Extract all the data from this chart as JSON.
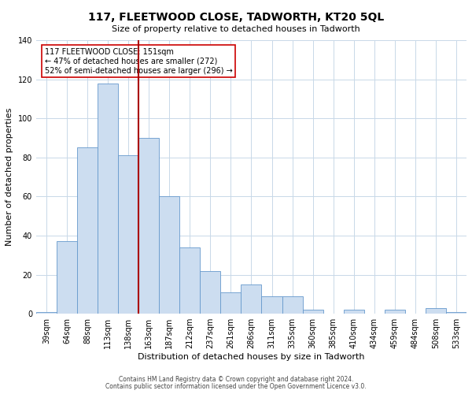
{
  "title": "117, FLEETWOOD CLOSE, TADWORTH, KT20 5QL",
  "subtitle": "Size of property relative to detached houses in Tadworth",
  "xlabel": "Distribution of detached houses by size in Tadworth",
  "ylabel": "Number of detached properties",
  "bar_labels": [
    "39sqm",
    "64sqm",
    "88sqm",
    "113sqm",
    "138sqm",
    "163sqm",
    "187sqm",
    "212sqm",
    "237sqm",
    "261sqm",
    "286sqm",
    "311sqm",
    "335sqm",
    "360sqm",
    "385sqm",
    "410sqm",
    "434sqm",
    "459sqm",
    "484sqm",
    "508sqm",
    "533sqm"
  ],
  "bar_values": [
    1,
    37,
    85,
    118,
    81,
    90,
    60,
    34,
    22,
    11,
    15,
    9,
    9,
    2,
    0,
    2,
    0,
    2,
    0,
    3,
    1
  ],
  "bar_color": "#ccddf0",
  "bar_edge_color": "#6699cc",
  "vline_x": 4.5,
  "vline_color": "#aa0000",
  "annotation_title": "117 FLEETWOOD CLOSE: 151sqm",
  "annotation_line1": "← 47% of detached houses are smaller (272)",
  "annotation_line2": "52% of semi-detached houses are larger (296) →",
  "annotation_box_color": "#ffffff",
  "annotation_box_edge": "#cc0000",
  "ylim": [
    0,
    140
  ],
  "yticks": [
    0,
    20,
    40,
    60,
    80,
    100,
    120,
    140
  ],
  "footer1": "Contains HM Land Registry data © Crown copyright and database right 2024.",
  "footer2": "Contains public sector information licensed under the Open Government Licence v3.0.",
  "grid_color": "#c8d8e8",
  "bg_color": "#ffffff",
  "title_fontsize": 10,
  "subtitle_fontsize": 8,
  "tick_fontsize": 7,
  "label_fontsize": 8,
  "annotation_fontsize": 7,
  "footer_fontsize": 5.5
}
